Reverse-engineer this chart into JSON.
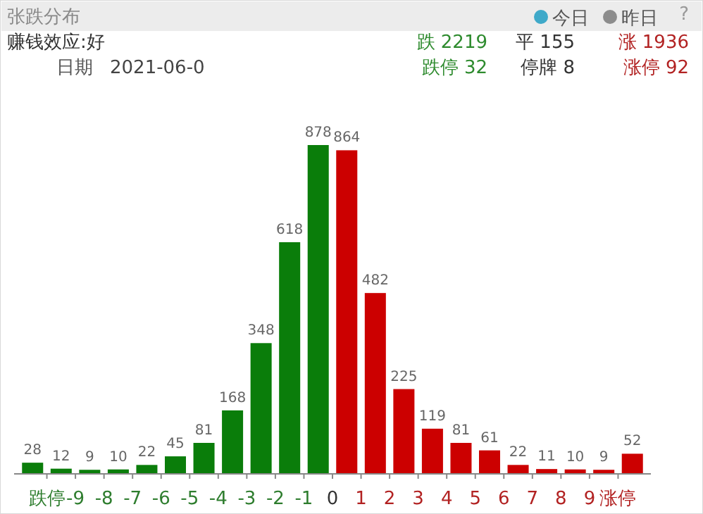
{
  "chart_data": {
    "type": "bar",
    "title": "张跌分布",
    "x": [
      -10.5,
      -9.5,
      -8.5,
      -7.5,
      -6.5,
      -5.5,
      -4.5,
      -3.5,
      -2.5,
      -1.5,
      -0.5,
      0.5,
      1.5,
      2.5,
      3.5,
      4.5,
      5.5,
      6.5,
      7.5,
      8.5,
      9.5,
      10.5
    ],
    "series": [
      {
        "name": "今日",
        "color": "#3fa9c9",
        "values": [
          28,
          12,
          9,
          10,
          22,
          45,
          81,
          168,
          348,
          618,
          878,
          864,
          482,
          225,
          119,
          81,
          61,
          22,
          11,
          10,
          9,
          52
        ],
        "colors": [
          "#0a7d0a",
          "#0a7d0a",
          "#0a7d0a",
          "#0a7d0a",
          "#0a7d0a",
          "#0a7d0a",
          "#0a7d0a",
          "#0a7d0a",
          "#0a7d0a",
          "#0a7d0a",
          "#0a7d0a",
          "#cc0000",
          "#cc0000",
          "#cc0000",
          "#cc0000",
          "#cc0000",
          "#cc0000",
          "#cc0000",
          "#cc0000",
          "#cc0000",
          "#cc0000",
          "#cc0000"
        ]
      }
    ],
    "xlim": [
      -11,
      11
    ],
    "xticks": [
      {
        "value": -10,
        "label": "跌停"
      },
      -9,
      -8,
      -7,
      -6,
      -5,
      -4,
      -3,
      -2,
      -1,
      0,
      1,
      2,
      3,
      4,
      5,
      6,
      7,
      8,
      9,
      {
        "value": 10,
        "label": "涨停"
      }
    ],
    "data_labels": true,
    "legend": "top right",
    "annotations": [
      "赚钱效应:好",
      "日期",
      "2021-06-0",
      "跌 2219",
      "平 155",
      "涨 1936",
      "跌停 32",
      "停牌 8",
      "涨停 92",
      "?",
      "昨日"
    ]
  }
}
